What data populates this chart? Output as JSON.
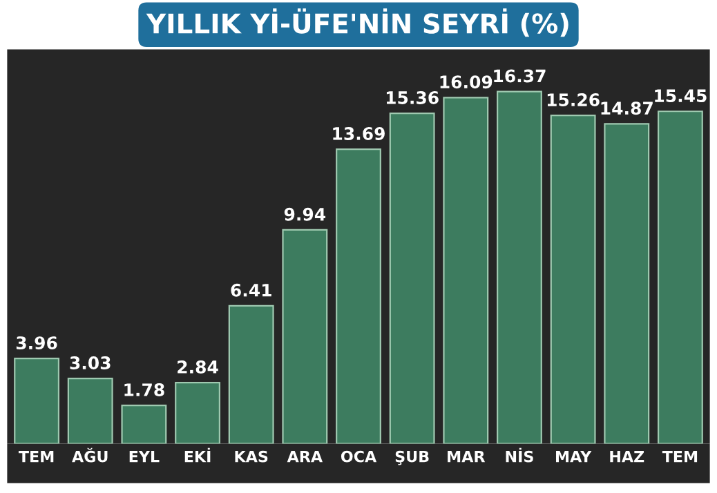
{
  "chart_data": {
    "type": "bar",
    "title": "YILLIK Yİ-ÜFE'NİN SEYRİ (%)",
    "categories": [
      "TEM",
      "AĞU",
      "EYL",
      "EKİ",
      "KAS",
      "ARA",
      "OCA",
      "ŞUB",
      "MAR",
      "NİS",
      "MAY",
      "HAZ",
      "TEM"
    ],
    "values": [
      3.96,
      3.03,
      1.78,
      2.84,
      6.41,
      9.94,
      13.69,
      15.36,
      16.09,
      16.37,
      15.26,
      14.87,
      15.45
    ],
    "color": "#3d7c5f",
    "data_labels": true
  }
}
